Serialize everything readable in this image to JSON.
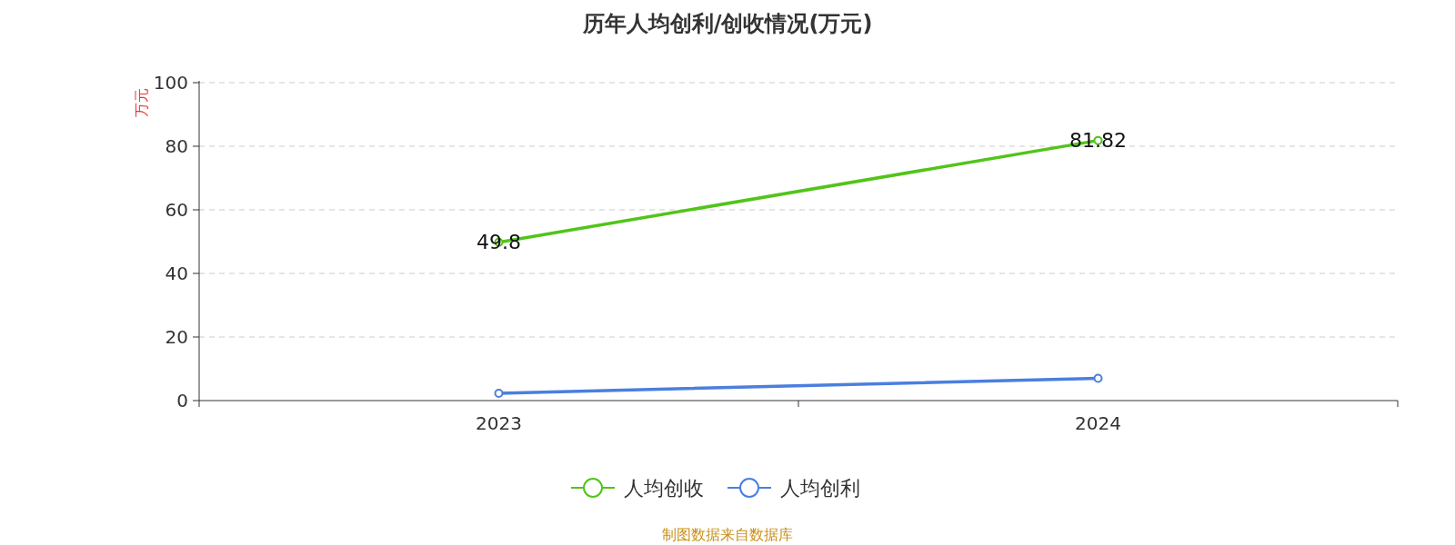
{
  "chart_data": {
    "type": "line",
    "title": "历年人均创利/创收情况(万元)",
    "ylabel": "万元",
    "categories": [
      "2023",
      "2024"
    ],
    "series": [
      {
        "name": "人均创收",
        "color": "#52c41a",
        "values": [
          49.8,
          81.82
        ],
        "value_labels": [
          "49.8",
          "81.82"
        ]
      },
      {
        "name": "人均创利",
        "color": "#4a7fdf",
        "values": [
          2.3,
          7.0
        ]
      }
    ],
    "ylim": [
      0,
      100
    ],
    "yticks": [
      0,
      20,
      40,
      60,
      80,
      100
    ],
    "grid": "y",
    "legend": "bottom",
    "marker": "circle",
    "line_style": "solid",
    "annotations": [
      "制图数据来自数据库"
    ]
  }
}
